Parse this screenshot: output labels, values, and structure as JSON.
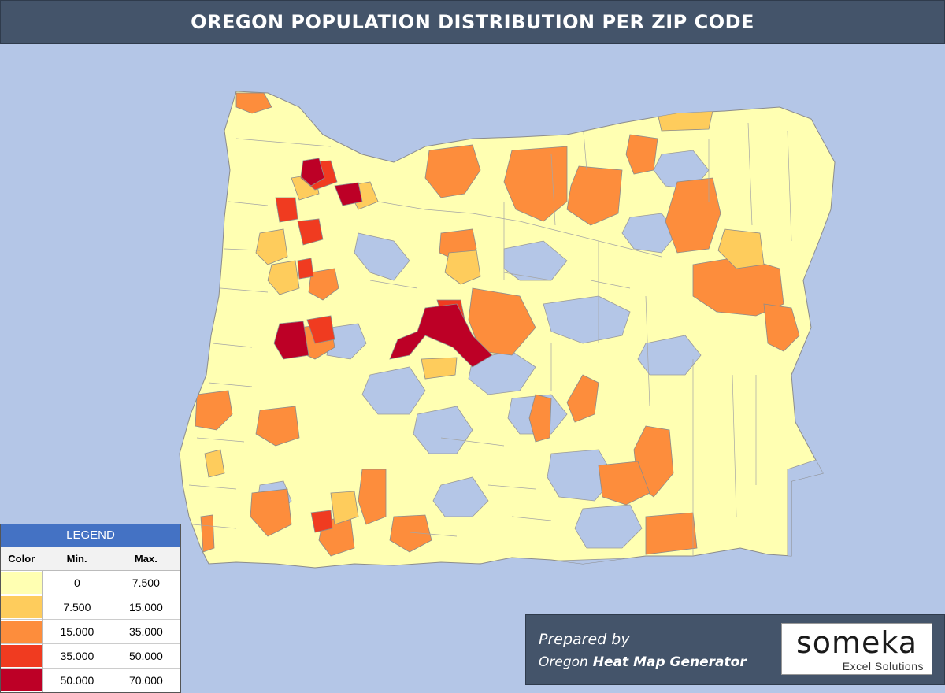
{
  "title": "OREGON POPULATION DISTRIBUTION PER ZIP CODE",
  "colors": {
    "background": "#b4c6e7",
    "header": "#44546a",
    "zip_boundary": "#9a9a9a",
    "class_colors": [
      "#ffffb2",
      "#fecc5c",
      "#fd8d3c",
      "#f03b20",
      "#bd0026"
    ]
  },
  "legend": {
    "title": "LEGEND",
    "headers": [
      "Color",
      "Min.",
      "Max."
    ],
    "rows": [
      {
        "min": "0",
        "max": "7.500"
      },
      {
        "min": "7.500",
        "max": "15.000"
      },
      {
        "min": "15.000",
        "max": "35.000"
      },
      {
        "min": "35.000",
        "max": "50.000"
      },
      {
        "min": "50.000",
        "max": "70.000"
      }
    ]
  },
  "branding": {
    "prepared_by": "Prepared by",
    "state": "Oregon",
    "tool": "Heat Map Generator",
    "logo_name": "someka",
    "logo_tagline": "Excel Solutions"
  }
}
